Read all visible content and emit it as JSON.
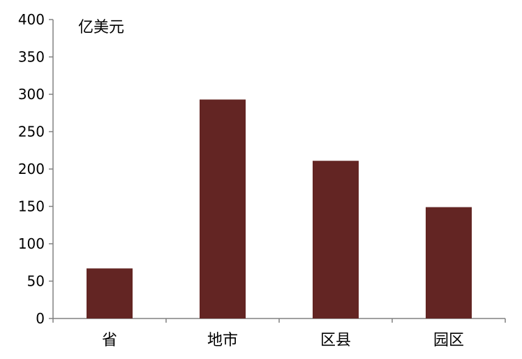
{
  "chart_data": {
    "type": "bar",
    "title": "",
    "unit_label": "亿美元",
    "xlabel": "",
    "ylabel": "",
    "categories": [
      "省",
      "地市",
      "区县",
      "园区"
    ],
    "values": [
      67,
      293,
      211,
      149
    ],
    "ylim": [
      0,
      400
    ],
    "yticks": [
      "0",
      "50",
      "100",
      "150",
      "200",
      "250",
      "300",
      "350",
      "400"
    ],
    "grid": false,
    "legend": "none",
    "bar_color": "#632523"
  }
}
